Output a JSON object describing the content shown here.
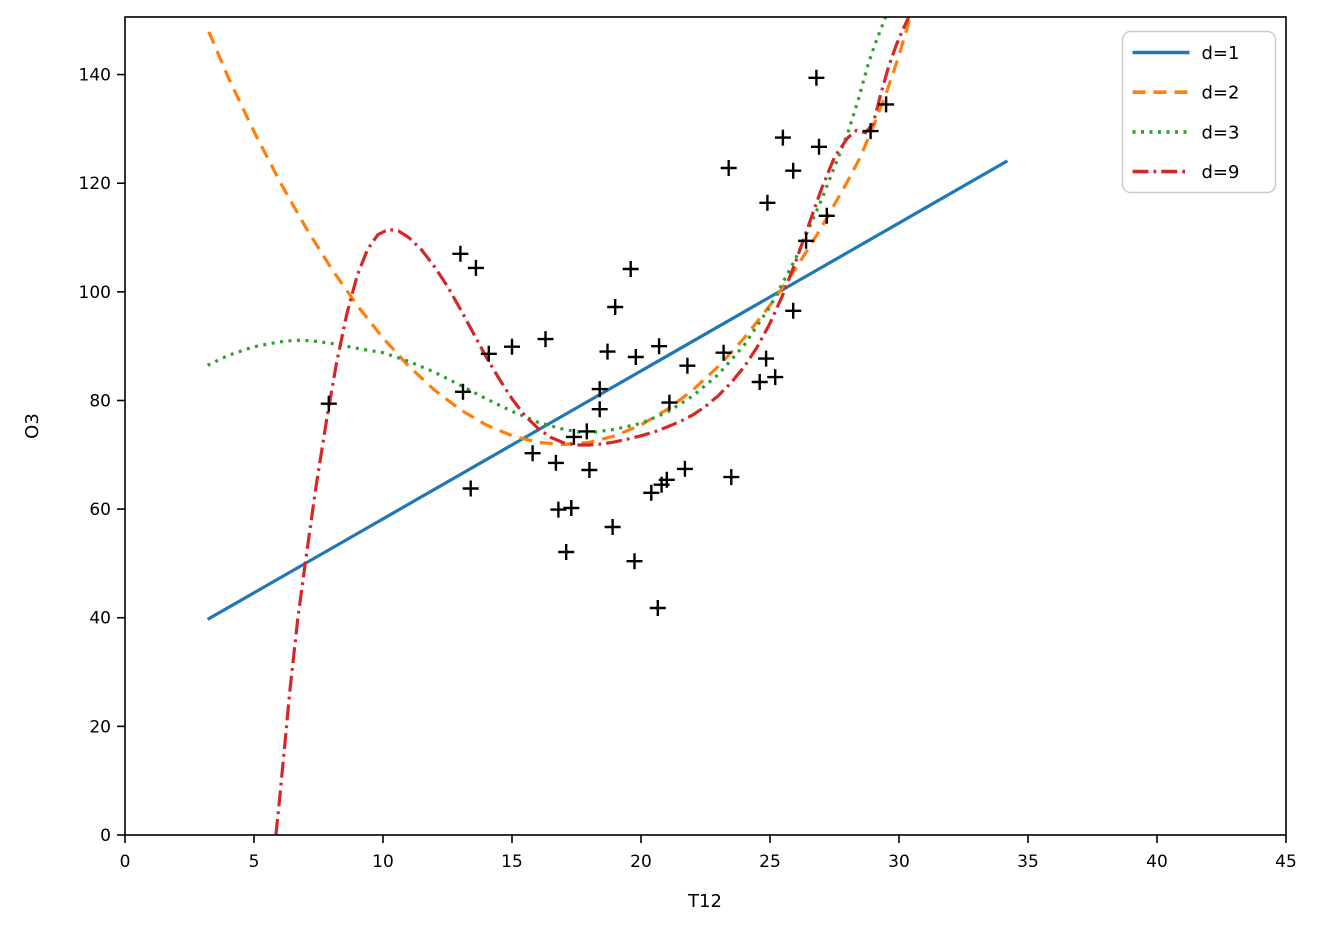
{
  "chart_data": {
    "type": "scatter",
    "title": "",
    "xlabel": "T12",
    "ylabel": "O3",
    "xlim": [
      0,
      45
    ],
    "ylim": [
      0,
      150.6
    ],
    "xticks": [
      0,
      5,
      10,
      15,
      20,
      25,
      30,
      35,
      40,
      45
    ],
    "yticks": [
      0,
      20,
      40,
      60,
      80,
      100,
      120,
      140
    ],
    "grid": false,
    "background_color": "#ffffff",
    "axis_color": "#000000",
    "legend": {
      "position": "upper right",
      "border_color": "#cccccc",
      "fill_color": "#ffffff"
    },
    "scatter": {
      "marker": "+",
      "color": "#000000",
      "points": [
        [
          7.9,
          79.4
        ],
        [
          13.0,
          107.0
        ],
        [
          13.6,
          104.4
        ],
        [
          13.1,
          81.6
        ],
        [
          13.4,
          63.8
        ],
        [
          14.1,
          88.6
        ],
        [
          15.0,
          89.9
        ],
        [
          15.8,
          70.3
        ],
        [
          16.3,
          91.3
        ],
        [
          16.7,
          68.5
        ],
        [
          16.8,
          59.9
        ],
        [
          17.1,
          52.1
        ],
        [
          17.3,
          60.2
        ],
        [
          17.4,
          73.3
        ],
        [
          17.9,
          74.3
        ],
        [
          18.0,
          67.2
        ],
        [
          18.4,
          82.1
        ],
        [
          18.4,
          78.4
        ],
        [
          18.7,
          89.0
        ],
        [
          18.9,
          56.7
        ],
        [
          19.0,
          97.2
        ],
        [
          19.6,
          104.2
        ],
        [
          19.75,
          50.4
        ],
        [
          19.8,
          88.0
        ],
        [
          20.4,
          63.0
        ],
        [
          20.65,
          41.8
        ],
        [
          20.7,
          90.0
        ],
        [
          20.8,
          64.5
        ],
        [
          21.0,
          65.4
        ],
        [
          21.1,
          79.6
        ],
        [
          21.7,
          67.4
        ],
        [
          21.8,
          86.4
        ],
        [
          23.2,
          88.8
        ],
        [
          23.4,
          122.8
        ],
        [
          23.5,
          65.9
        ],
        [
          24.6,
          83.4
        ],
        [
          24.85,
          87.7
        ],
        [
          24.9,
          116.4
        ],
        [
          25.2,
          84.3
        ],
        [
          25.5,
          128.4
        ],
        [
          25.9,
          96.5
        ],
        [
          25.9,
          122.3
        ],
        [
          26.4,
          109.4
        ],
        [
          26.8,
          139.4
        ],
        [
          26.9,
          126.7
        ],
        [
          27.2,
          114.0
        ],
        [
          28.9,
          129.6
        ],
        [
          29.5,
          134.5
        ]
      ]
    },
    "series": [
      {
        "name": "d=1",
        "color": "#1f77b4",
        "line_style": "solid",
        "points": [
          [
            3.2,
            39.7
          ],
          [
            34.2,
            124.1
          ]
        ]
      },
      {
        "name": "d=2",
        "color": "#ff7f0e",
        "line_style": "dashed",
        "points": [
          [
            3.25,
            147.9
          ],
          [
            4,
            139.5
          ],
          [
            5,
            129.5
          ],
          [
            6,
            120.3
          ],
          [
            7,
            111.9
          ],
          [
            8,
            104.3
          ],
          [
            9,
            97.5
          ],
          [
            10,
            91.5
          ],
          [
            11,
            86.3
          ],
          [
            12,
            81.9
          ],
          [
            13,
            78.3
          ],
          [
            14,
            75.5
          ],
          [
            15,
            73.5
          ],
          [
            16,
            72.3
          ],
          [
            17,
            71.9
          ],
          [
            18,
            72.3
          ],
          [
            19,
            73.5
          ],
          [
            20,
            75.5
          ],
          [
            21,
            78.3
          ],
          [
            22,
            81.9
          ],
          [
            23,
            86.3
          ],
          [
            24,
            91.5
          ],
          [
            25,
            97.5
          ],
          [
            26,
            104.3
          ],
          [
            27,
            111.9
          ],
          [
            28,
            120.3
          ],
          [
            28.5,
            124.8
          ],
          [
            29,
            130.4
          ],
          [
            29.5,
            136.5
          ],
          [
            30,
            143.5
          ],
          [
            30.45,
            150.8
          ]
        ]
      },
      {
        "name": "d=3",
        "color": "#2ca02c",
        "line_style": "dotted",
        "points": [
          [
            3.2,
            86.5
          ],
          [
            4,
            88.3
          ],
          [
            5,
            89.9
          ],
          [
            6,
            90.8
          ],
          [
            6.6,
            91.1
          ],
          [
            7.2,
            91.0
          ],
          [
            8,
            90.5
          ],
          [
            9,
            89.6
          ],
          [
            10,
            88.8
          ],
          [
            11,
            87.2
          ],
          [
            12,
            85.2
          ],
          [
            13,
            82.8
          ],
          [
            14,
            80.3
          ],
          [
            15,
            78.0
          ],
          [
            16,
            76.0
          ],
          [
            17,
            74.7
          ],
          [
            17.6,
            74.2
          ],
          [
            18.2,
            74.2
          ],
          [
            19,
            74.7
          ],
          [
            20,
            75.8
          ],
          [
            21,
            77.8
          ],
          [
            22,
            80.8
          ],
          [
            23,
            84.8
          ],
          [
            24,
            90.2
          ],
          [
            25,
            97.3
          ],
          [
            26,
            106.2
          ],
          [
            27,
            117.0
          ],
          [
            28,
            129.0
          ],
          [
            28.4,
            135.0
          ],
          [
            28.8,
            141.8
          ],
          [
            29.1,
            146.0
          ],
          [
            29.5,
            150.8
          ]
        ]
      },
      {
        "name": "d=9",
        "color": "#d62728",
        "line_style": "dashdot",
        "points": [
          [
            5.85,
            0
          ],
          [
            6.0,
            7
          ],
          [
            6.2,
            17
          ],
          [
            6.4,
            27
          ],
          [
            6.7,
            40
          ],
          [
            7.0,
            50.5
          ],
          [
            7.4,
            64
          ],
          [
            7.8,
            76
          ],
          [
            8.2,
            87
          ],
          [
            8.6,
            96
          ],
          [
            9.0,
            103
          ],
          [
            9.4,
            107.8
          ],
          [
            9.8,
            110.5
          ],
          [
            10.2,
            111.5
          ],
          [
            10.6,
            111.2
          ],
          [
            11.0,
            110.0
          ],
          [
            11.5,
            107.7
          ],
          [
            12.0,
            104.6
          ],
          [
            12.5,
            101.0
          ],
          [
            13.0,
            96.8
          ],
          [
            13.5,
            92.4
          ],
          [
            14.0,
            88.0
          ],
          [
            14.5,
            84.0
          ],
          [
            15.0,
            80.3
          ],
          [
            15.5,
            77.2
          ],
          [
            16.0,
            74.9
          ],
          [
            16.5,
            73.2
          ],
          [
            17.0,
            72.2
          ],
          [
            17.5,
            71.8
          ],
          [
            18.0,
            71.8
          ],
          [
            18.5,
            72.0
          ],
          [
            19.0,
            72.4
          ],
          [
            19.5,
            72.9
          ],
          [
            20.0,
            73.5
          ],
          [
            20.5,
            74.2
          ],
          [
            21.0,
            75.1
          ],
          [
            21.5,
            76.1
          ],
          [
            22.0,
            77.3
          ],
          [
            22.5,
            78.9
          ],
          [
            23.0,
            80.9
          ],
          [
            23.5,
            83.3
          ],
          [
            24.0,
            86.2
          ],
          [
            24.5,
            89.8
          ],
          [
            25.0,
            94.2
          ],
          [
            25.5,
            99.5
          ],
          [
            26.0,
            105.6
          ],
          [
            26.5,
            112.3
          ],
          [
            27.0,
            119.0
          ],
          [
            27.5,
            124.8
          ],
          [
            28.0,
            128.3
          ],
          [
            28.35,
            129.7
          ],
          [
            28.7,
            129.3
          ],
          [
            29.0,
            131.0
          ],
          [
            29.3,
            136.5
          ],
          [
            29.6,
            141.5
          ],
          [
            29.9,
            145.5
          ],
          [
            30.15,
            148.3
          ],
          [
            30.4,
            150.8
          ]
        ]
      }
    ]
  }
}
